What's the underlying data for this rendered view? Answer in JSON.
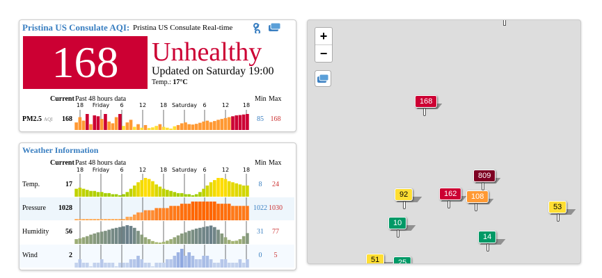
{
  "aqi_panel": {
    "station_title": "Pristina US Consulate AQI:",
    "station_subtitle": "Pristina US Consulate Real-time",
    "aqi": 168,
    "status": "Unhealthy",
    "updated": "Updated on Saturday 19:00",
    "temp_label": "Temp.:",
    "temp": "17°C",
    "header_current": "Current",
    "header_past": "Past 48 hours data",
    "header_min": "Min",
    "header_max": "Max",
    "time_labels": [
      "18",
      "Friday",
      "6",
      "12",
      "18",
      "Saturday",
      "6",
      "12",
      "18"
    ],
    "rows": [
      {
        "label": "PM2.5",
        "sublabel": "AQI",
        "current": 168,
        "min": 85,
        "max": 168,
        "values": [
          120,
          150,
          130,
          168,
          110,
          160,
          155,
          140,
          168,
          125,
          115,
          150,
          168,
          100,
          120,
          135,
          95,
          110,
          90,
          105,
          88,
          92,
          100,
          110,
          95,
          90,
          85,
          98,
          105,
          115,
          120,
          110,
          108,
          112,
          118,
          125,
          130,
          122,
          128,
          135,
          140,
          145,
          150,
          155,
          160,
          162,
          165,
          168
        ]
      }
    ]
  },
  "weather_panel": {
    "title": "Weather Information",
    "header_current": "Current",
    "header_past": "Past 48 hours data",
    "header_min": "Min",
    "header_max": "Max",
    "time_labels": [
      "18",
      "Friday",
      "6",
      "12",
      "18",
      "Saturday",
      "6",
      "12",
      "18"
    ],
    "rows": [
      {
        "label": "Temp.",
        "current": 17,
        "min": 8,
        "max": 24,
        "values": [
          14,
          15,
          14,
          13,
          12,
          12,
          11,
          11,
          10,
          10,
          9,
          9,
          8,
          9,
          11,
          14,
          17,
          20,
          22,
          24,
          23,
          21,
          18,
          16,
          14,
          13,
          12,
          11,
          10,
          10,
          9,
          9,
          8,
          9,
          11,
          14,
          17,
          20,
          22,
          24,
          24,
          23,
          21,
          20,
          19,
          18,
          17,
          17
        ]
      },
      {
        "label": "Pressure",
        "current": 1028,
        "min": 1022,
        "max": 1030,
        "values": [
          1022,
          1022,
          1022,
          1022,
          1022,
          1022,
          1022,
          1022,
          1022,
          1022,
          1022,
          1022,
          1022,
          1022,
          1023,
          1023,
          1024,
          1025,
          1025,
          1026,
          1026,
          1026,
          1027,
          1027,
          1027,
          1027,
          1028,
          1028,
          1028,
          1029,
          1029,
          1029,
          1030,
          1030,
          1030,
          1030,
          1030,
          1030,
          1030,
          1029,
          1029,
          1029,
          1029,
          1028,
          1028,
          1028,
          1028,
          1028
        ]
      },
      {
        "label": "Humidity",
        "current": 56,
        "min": 31,
        "max": 77,
        "values": [
          40,
          42,
          45,
          48,
          52,
          55,
          58,
          60,
          62,
          65,
          68,
          70,
          72,
          74,
          77,
          75,
          70,
          62,
          52,
          45,
          40,
          35,
          32,
          31,
          33,
          36,
          40,
          45,
          50,
          55,
          58,
          62,
          65,
          68,
          70,
          72,
          74,
          76,
          72,
          65,
          55,
          45,
          38,
          35,
          36,
          40,
          48,
          56
        ]
      },
      {
        "label": "Wind",
        "current": 2,
        "min": 0,
        "max": 5,
        "values": [
          1,
          2,
          1,
          1,
          0,
          1,
          1,
          2,
          1,
          1,
          1,
          0,
          1,
          1,
          1,
          2,
          2,
          3,
          2,
          1,
          1,
          0,
          1,
          1,
          1,
          2,
          2,
          3,
          4,
          5,
          3,
          4,
          3,
          2,
          2,
          3,
          3,
          2,
          1,
          1,
          2,
          2,
          1,
          1,
          1,
          2,
          1,
          2
        ]
      }
    ]
  },
  "map": {
    "zoom_in": "+",
    "zoom_out": "−",
    "markers": [
      168,
      809,
      162,
      108,
      92,
      53,
      10,
      14,
      51,
      25
    ]
  }
}
